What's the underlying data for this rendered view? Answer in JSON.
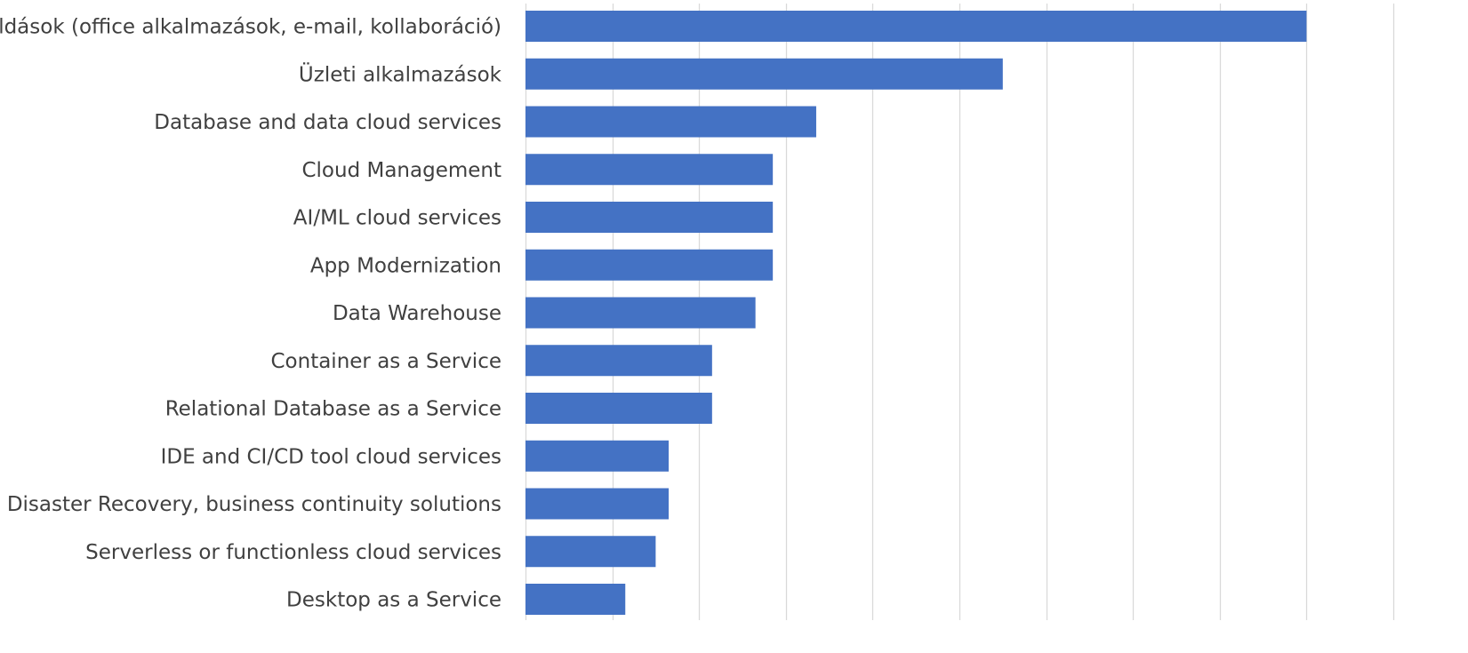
{
  "chart_data": {
    "type": "bar",
    "orientation": "horizontal",
    "categories": [
      "Munkahelyi megoldások (office alkalmazások, e-mail, kollaboráció)",
      "Üzleti alkalmazások",
      "Database and data cloud services",
      "Cloud Management",
      "AI/ML cloud services",
      "App Modernization",
      "Data Warehouse",
      "Container as a Service",
      "Relational Database as a Service",
      "IDE and CI/CD tool cloud services",
      "Disaster Recovery, business continuity solutions",
      "Serverless or functionless cloud services",
      "Desktop as a Service"
    ],
    "values": [
      36.0,
      22.0,
      13.4,
      11.4,
      11.4,
      11.4,
      10.6,
      8.6,
      8.6,
      6.6,
      6.6,
      6.0,
      4.6
    ],
    "xlim": [
      0,
      40
    ],
    "grid": "vertical",
    "legend": "none",
    "bar_color": "#4472C4",
    "grid_color": "#D9D9D9",
    "label_color": "#404040"
  }
}
